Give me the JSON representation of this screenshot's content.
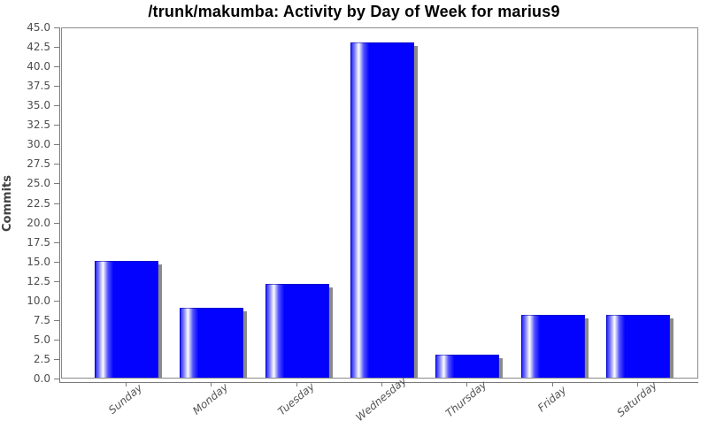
{
  "chart_data": {
    "type": "bar",
    "title": "/trunk/makumba: Activity by Day of Week for marius9",
    "categories": [
      "Sunday",
      "Monday",
      "Tuesday",
      "Wednesday",
      "Thursday",
      "Friday",
      "Saturday"
    ],
    "values": [
      15,
      9,
      12,
      43,
      3,
      8,
      8
    ],
    "xlabel": "",
    "ylabel": "Commits",
    "ylim": [
      0,
      45
    ],
    "ytick_step": 2.5,
    "grid": false,
    "legend_position": "none",
    "plot_background": "#ffffff",
    "bar_color": "#0202fe",
    "bar_highlight_color": "#ffffff",
    "bar_shadow_color": "#8b8b8b",
    "plot_border_color": "#8a8a8a",
    "axis_line_color": "#7a7a7a",
    "y_tick_label_color": "#4d4d4d",
    "x_tick_label_color": "#555555",
    "title_color": "#000000"
  }
}
